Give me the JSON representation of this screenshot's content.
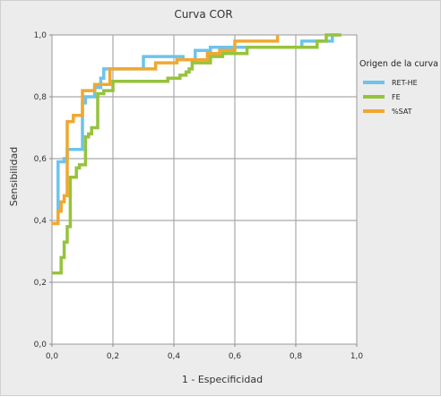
{
  "chart_data": {
    "type": "line",
    "title": "Curva COR",
    "xlabel": "1 - Especificidad",
    "ylabel": "Sensibilidad",
    "xlim": [
      0,
      1
    ],
    "ylim": [
      0,
      1
    ],
    "x_ticks": [
      "0,0",
      "0,2",
      "0,4",
      "0,6",
      "0,8",
      "1,0"
    ],
    "y_ticks": [
      "0,0",
      "0,2",
      "0,4",
      "0,6",
      "0,8",
      "1,0"
    ],
    "grid": true,
    "legend_title": "Origen de la curva",
    "legend_position": "right",
    "series": [
      {
        "name": "RET-HE",
        "color": "#6cc4ec",
        "points": [
          [
            0,
            0.39
          ],
          [
            0.02,
            0.39
          ],
          [
            0.02,
            0.59
          ],
          [
            0.04,
            0.59
          ],
          [
            0.04,
            0.6
          ],
          [
            0.05,
            0.6
          ],
          [
            0.05,
            0.63
          ],
          [
            0.1,
            0.63
          ],
          [
            0.1,
            0.78
          ],
          [
            0.11,
            0.78
          ],
          [
            0.11,
            0.8
          ],
          [
            0.14,
            0.8
          ],
          [
            0.14,
            0.83
          ],
          [
            0.16,
            0.83
          ],
          [
            0.16,
            0.86
          ],
          [
            0.17,
            0.86
          ],
          [
            0.17,
            0.89
          ],
          [
            0.3,
            0.89
          ],
          [
            0.3,
            0.93
          ],
          [
            0.43,
            0.93
          ],
          [
            0.43,
            0.92
          ],
          [
            0.47,
            0.92
          ],
          [
            0.47,
            0.95
          ],
          [
            0.52,
            0.95
          ],
          [
            0.52,
            0.96
          ],
          [
            0.63,
            0.96
          ],
          [
            0.63,
            0.96
          ],
          [
            0.82,
            0.96
          ],
          [
            0.82,
            0.98
          ],
          [
            0.92,
            0.98
          ],
          [
            0.92,
            1.0
          ],
          [
            0.94,
            1.0
          ]
        ]
      },
      {
        "name": "FE",
        "color": "#96c33c",
        "points": [
          [
            0,
            0.23
          ],
          [
            0.03,
            0.23
          ],
          [
            0.03,
            0.28
          ],
          [
            0.04,
            0.28
          ],
          [
            0.04,
            0.33
          ],
          [
            0.05,
            0.33
          ],
          [
            0.05,
            0.38
          ],
          [
            0.06,
            0.38
          ],
          [
            0.06,
            0.54
          ],
          [
            0.08,
            0.54
          ],
          [
            0.08,
            0.57
          ],
          [
            0.09,
            0.57
          ],
          [
            0.09,
            0.58
          ],
          [
            0.11,
            0.58
          ],
          [
            0.11,
            0.67
          ],
          [
            0.12,
            0.67
          ],
          [
            0.12,
            0.68
          ],
          [
            0.13,
            0.68
          ],
          [
            0.13,
            0.7
          ],
          [
            0.15,
            0.7
          ],
          [
            0.15,
            0.81
          ],
          [
            0.17,
            0.81
          ],
          [
            0.17,
            0.82
          ],
          [
            0.2,
            0.82
          ],
          [
            0.2,
            0.85
          ],
          [
            0.38,
            0.85
          ],
          [
            0.38,
            0.86
          ],
          [
            0.42,
            0.86
          ],
          [
            0.42,
            0.87
          ],
          [
            0.44,
            0.87
          ],
          [
            0.44,
            0.88
          ],
          [
            0.45,
            0.88
          ],
          [
            0.45,
            0.89
          ],
          [
            0.46,
            0.89
          ],
          [
            0.46,
            0.91
          ],
          [
            0.52,
            0.91
          ],
          [
            0.52,
            0.93
          ],
          [
            0.56,
            0.93
          ],
          [
            0.56,
            0.94
          ],
          [
            0.64,
            0.94
          ],
          [
            0.64,
            0.96
          ],
          [
            0.83,
            0.96
          ],
          [
            0.83,
            0.96
          ],
          [
            0.87,
            0.96
          ],
          [
            0.87,
            0.98
          ],
          [
            0.9,
            0.98
          ],
          [
            0.9,
            1.0
          ],
          [
            0.95,
            1.0
          ]
        ]
      },
      {
        "name": "%SAT",
        "color": "#f0a830",
        "points": [
          [
            0,
            0.39
          ],
          [
            0.02,
            0.39
          ],
          [
            0.02,
            0.43
          ],
          [
            0.03,
            0.43
          ],
          [
            0.03,
            0.46
          ],
          [
            0.04,
            0.46
          ],
          [
            0.04,
            0.48
          ],
          [
            0.05,
            0.48
          ],
          [
            0.05,
            0.72
          ],
          [
            0.07,
            0.72
          ],
          [
            0.07,
            0.74
          ],
          [
            0.1,
            0.74
          ],
          [
            0.1,
            0.82
          ],
          [
            0.14,
            0.82
          ],
          [
            0.14,
            0.84
          ],
          [
            0.19,
            0.84
          ],
          [
            0.19,
            0.89
          ],
          [
            0.34,
            0.89
          ],
          [
            0.34,
            0.91
          ],
          [
            0.41,
            0.91
          ],
          [
            0.41,
            0.92
          ],
          [
            0.51,
            0.92
          ],
          [
            0.51,
            0.94
          ],
          [
            0.55,
            0.94
          ],
          [
            0.55,
            0.95
          ],
          [
            0.6,
            0.95
          ],
          [
            0.6,
            0.98
          ],
          [
            0.69,
            0.98
          ],
          [
            0.69,
            0.98
          ],
          [
            0.74,
            0.98
          ],
          [
            0.74,
            1.0
          ]
        ]
      }
    ]
  }
}
